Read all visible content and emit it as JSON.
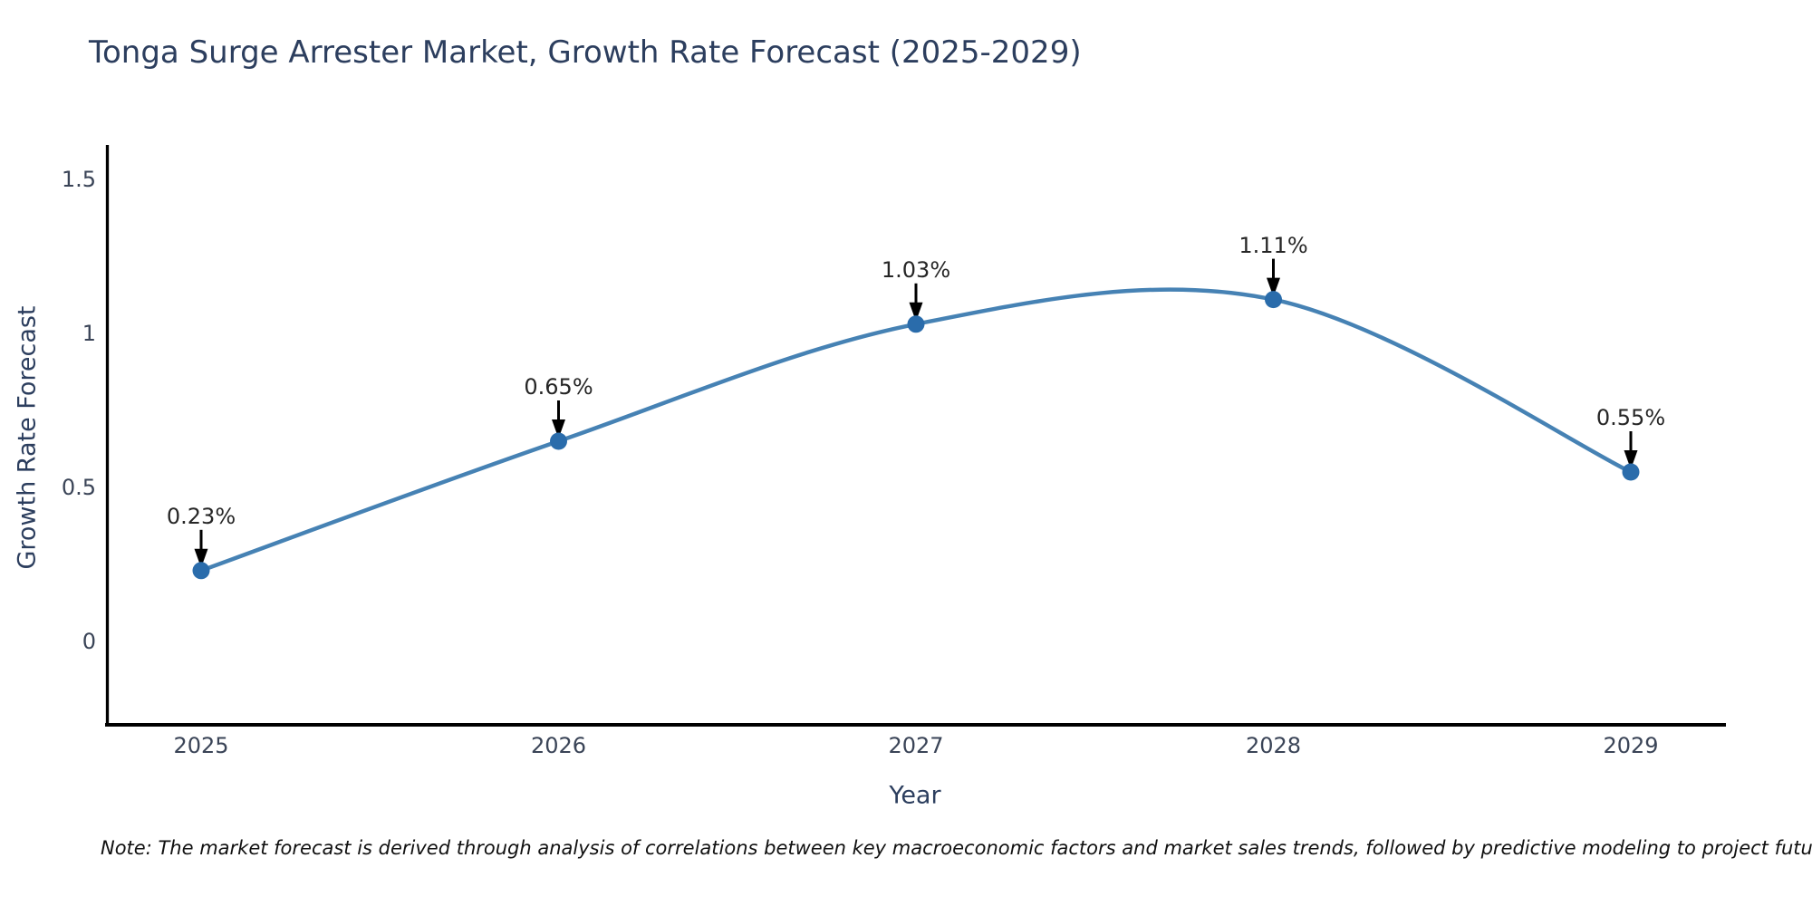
{
  "chart_data": {
    "type": "line",
    "title": "Tonga Surge Arrester Market, Growth Rate Forecast (2025-2029)",
    "xlabel": "Year",
    "ylabel": "Growth Rate Forecast",
    "categories": [
      "2025",
      "2026",
      "2027",
      "2028",
      "2029"
    ],
    "values": [
      0.23,
      0.65,
      1.03,
      1.11,
      0.55
    ],
    "point_labels": [
      "0.23%",
      "0.65%",
      "1.03%",
      "1.11%",
      "0.55%"
    ],
    "yticks": [
      0,
      0.5,
      1,
      1.5
    ],
    "ylim": [
      -0.29,
      1.62
    ],
    "line_shape": "spline",
    "grid": false,
    "legend_position": "none",
    "colors": {
      "line": "#4682b4",
      "marker": "#2a6cab",
      "axis": "#000000",
      "title_text": "#2c3e5e",
      "tick_text": "#3a4457",
      "annotation_text": "#262626"
    }
  },
  "note": "Note: The market forecast is derived through analysis of correlations between key macroeconomic factors and market sales trends, followed by predictive modeling to project future sales"
}
